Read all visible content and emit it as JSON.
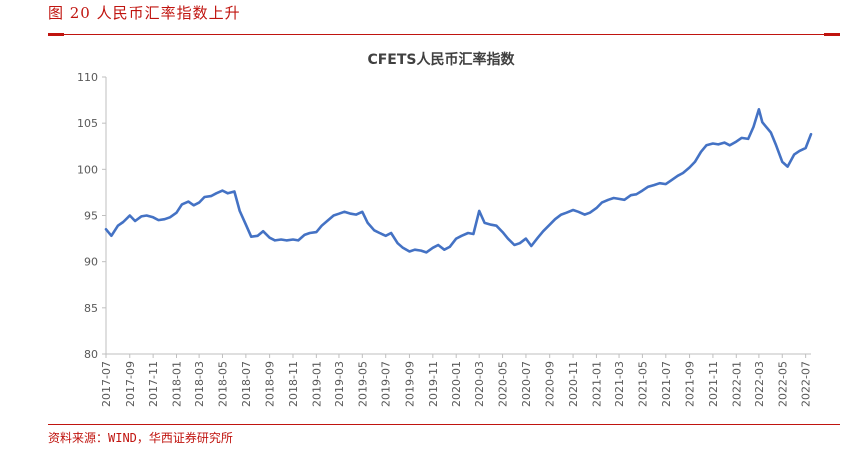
{
  "figure": {
    "title": "图 20    人民币汇率指数上升",
    "source": "资料来源：WIND，华西证券研究所"
  },
  "chart_data": {
    "type": "line",
    "title": "CFETS人民币汇率指数",
    "xlabel": "",
    "ylabel": "",
    "ylim": [
      80,
      110
    ],
    "yticks": [
      80,
      85,
      90,
      95,
      100,
      105,
      110
    ],
    "xticks": [
      "2017-07",
      "2017-09",
      "2017-11",
      "2018-01",
      "2018-03",
      "2018-05",
      "2018-07",
      "2018-09",
      "2018-11",
      "2019-01",
      "2019-03",
      "2019-05",
      "2019-07",
      "2019-09",
      "2019-11",
      "2020-01",
      "2020-03",
      "2020-05",
      "2020-07",
      "2020-09",
      "2020-11",
      "2021-01",
      "2021-03",
      "2021-05",
      "2021-07",
      "2021-09",
      "2021-11",
      "2022-01",
      "2022-03",
      "2022-05",
      "2022-07"
    ],
    "grid": false,
    "legend": "none",
    "color": "#4472c4",
    "series": [
      {
        "x": [
          "2017-07-01",
          "2017-07-15",
          "2017-08-01",
          "2017-08-15",
          "2017-09-01",
          "2017-09-15",
          "2017-10-01",
          "2017-10-15",
          "2017-11-01",
          "2017-11-15",
          "2017-12-01",
          "2017-12-15",
          "2018-01-01",
          "2018-01-15",
          "2018-02-01",
          "2018-02-15",
          "2018-03-01",
          "2018-03-15",
          "2018-04-01",
          "2018-04-15",
          "2018-05-01",
          "2018-05-15",
          "2018-06-01",
          "2018-06-15",
          "2018-07-01",
          "2018-07-15",
          "2018-08-01",
          "2018-08-15",
          "2018-09-01",
          "2018-09-15",
          "2018-10-01",
          "2018-10-15",
          "2018-11-01",
          "2018-11-15",
          "2018-12-01",
          "2018-12-15",
          "2019-01-01",
          "2019-01-15",
          "2019-02-01",
          "2019-02-15",
          "2019-03-01",
          "2019-03-15",
          "2019-04-01",
          "2019-04-15",
          "2019-05-01",
          "2019-05-15",
          "2019-06-01",
          "2019-06-15",
          "2019-07-01",
          "2019-07-15",
          "2019-08-01",
          "2019-08-15",
          "2019-09-01",
          "2019-09-15",
          "2019-10-01",
          "2019-10-15",
          "2019-11-01",
          "2019-11-15",
          "2019-12-01",
          "2019-12-15",
          "2020-01-01",
          "2020-01-15",
          "2020-02-01",
          "2020-02-15",
          "2020-03-01",
          "2020-03-15",
          "2020-04-01",
          "2020-04-15",
          "2020-05-01",
          "2020-05-15",
          "2020-06-01",
          "2020-06-15",
          "2020-07-01",
          "2020-07-15",
          "2020-08-01",
          "2020-08-15",
          "2020-09-01",
          "2020-09-15",
          "2020-10-01",
          "2020-10-15",
          "2020-11-01",
          "2020-11-15",
          "2020-12-01",
          "2020-12-15",
          "2021-01-01",
          "2021-01-15",
          "2021-02-01",
          "2021-02-15",
          "2021-03-01",
          "2021-03-15",
          "2021-04-01",
          "2021-04-15",
          "2021-05-01",
          "2021-05-15",
          "2021-06-01",
          "2021-06-15",
          "2021-07-01",
          "2021-07-15",
          "2021-08-01",
          "2021-08-15",
          "2021-09-01",
          "2021-09-15",
          "2021-10-01",
          "2021-10-15",
          "2021-11-01",
          "2021-11-15",
          "2021-12-01",
          "2021-12-15",
          "2022-01-01",
          "2022-01-15",
          "2022-02-01",
          "2022-02-15",
          "2022-03-01",
          "2022-03-10",
          "2022-03-20",
          "2022-04-01",
          "2022-04-15",
          "2022-05-01",
          "2022-05-15",
          "2022-06-01",
          "2022-06-15",
          "2022-07-01",
          "2022-07-15"
        ],
        "y": [
          93.5,
          92.8,
          93.9,
          94.3,
          95.0,
          94.4,
          94.9,
          95.0,
          94.8,
          94.5,
          94.6,
          94.8,
          95.3,
          96.2,
          96.5,
          96.1,
          96.4,
          97.0,
          97.1,
          97.4,
          97.7,
          97.4,
          97.6,
          95.5,
          94.0,
          92.7,
          92.8,
          93.3,
          92.6,
          92.3,
          92.4,
          92.3,
          92.4,
          92.3,
          92.9,
          93.1,
          93.2,
          93.9,
          94.5,
          95.0,
          95.2,
          95.4,
          95.2,
          95.1,
          95.4,
          94.2,
          93.4,
          93.1,
          92.8,
          93.1,
          92.0,
          91.5,
          91.1,
          91.3,
          91.2,
          91.0,
          91.5,
          91.8,
          91.3,
          91.6,
          92.5,
          92.8,
          93.1,
          93.0,
          95.5,
          94.2,
          94.0,
          93.9,
          93.2,
          92.5,
          91.8,
          92.0,
          92.5,
          91.7,
          92.6,
          93.3,
          94.0,
          94.6,
          95.1,
          95.3,
          95.6,
          95.4,
          95.1,
          95.3,
          95.8,
          96.4,
          96.7,
          96.9,
          96.8,
          96.7,
          97.2,
          97.3,
          97.7,
          98.1,
          98.3,
          98.5,
          98.4,
          98.8,
          99.3,
          99.6,
          100.2,
          100.8,
          101.9,
          102.6,
          102.8,
          102.7,
          102.9,
          102.6,
          103.0,
          103.4,
          103.3,
          104.6,
          106.5,
          105.1,
          104.6,
          104.0,
          102.6,
          100.8,
          100.3,
          101.6,
          102.0,
          102.3,
          103.8
        ]
      }
    ]
  }
}
